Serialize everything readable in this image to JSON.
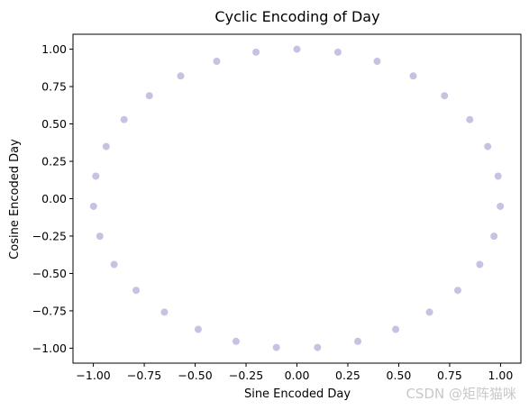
{
  "chart_data": {
    "type": "scatter",
    "title": "Cyclic Encoding of Day",
    "xlabel": "Sine Encoded Day",
    "ylabel": "Cosine Encoded Day",
    "xlim": [
      -1.1,
      1.1
    ],
    "ylim": [
      -1.1,
      1.1
    ],
    "xticks": [
      -1.0,
      -0.75,
      -0.5,
      -0.25,
      0.0,
      0.25,
      0.5,
      0.75,
      1.0
    ],
    "yticks": [
      -1.0,
      -0.75,
      -0.5,
      -0.25,
      0.0,
      0.25,
      0.5,
      0.75,
      1.0
    ],
    "xtick_labels": [
      "−1.00",
      "−0.75",
      "−0.50",
      "−0.25",
      "0.00",
      "0.25",
      "0.50",
      "0.75",
      "1.00"
    ],
    "ytick_labels": [
      "−1.00",
      "−0.75",
      "−0.50",
      "−0.25",
      "0.00",
      "0.25",
      "0.50",
      "0.75",
      "1.00"
    ],
    "grid": false,
    "marker_color": "#c5c3e1",
    "points": [
      {
        "x": 0.0,
        "y": 1.0
      },
      {
        "x": 0.201,
        "y": 0.98
      },
      {
        "x": 0.394,
        "y": 0.919
      },
      {
        "x": 0.571,
        "y": 0.821
      },
      {
        "x": 0.725,
        "y": 0.689
      },
      {
        "x": 0.849,
        "y": 0.529
      },
      {
        "x": 0.937,
        "y": 0.349
      },
      {
        "x": 0.988,
        "y": 0.151
      },
      {
        "x": 0.999,
        "y": -0.051
      },
      {
        "x": 0.968,
        "y": -0.251
      },
      {
        "x": 0.898,
        "y": -0.44
      },
      {
        "x": 0.79,
        "y": -0.613
      },
      {
        "x": 0.651,
        "y": -0.759
      },
      {
        "x": 0.485,
        "y": -0.874
      },
      {
        "x": 0.299,
        "y": -0.954
      },
      {
        "x": 0.101,
        "y": -0.995
      },
      {
        "x": -0.101,
        "y": -0.995
      },
      {
        "x": -0.299,
        "y": -0.954
      },
      {
        "x": -0.485,
        "y": -0.874
      },
      {
        "x": -0.651,
        "y": -0.759
      },
      {
        "x": -0.79,
        "y": -0.613
      },
      {
        "x": -0.898,
        "y": -0.44
      },
      {
        "x": -0.968,
        "y": -0.251
      },
      {
        "x": -0.999,
        "y": -0.051
      },
      {
        "x": -0.988,
        "y": 0.151
      },
      {
        "x": -0.937,
        "y": 0.349
      },
      {
        "x": -0.849,
        "y": 0.529
      },
      {
        "x": -0.725,
        "y": 0.689
      },
      {
        "x": -0.571,
        "y": 0.821
      },
      {
        "x": -0.394,
        "y": 0.919
      },
      {
        "x": -0.201,
        "y": 0.98
      }
    ]
  },
  "watermark": "CSDN @矩阵猫咪"
}
